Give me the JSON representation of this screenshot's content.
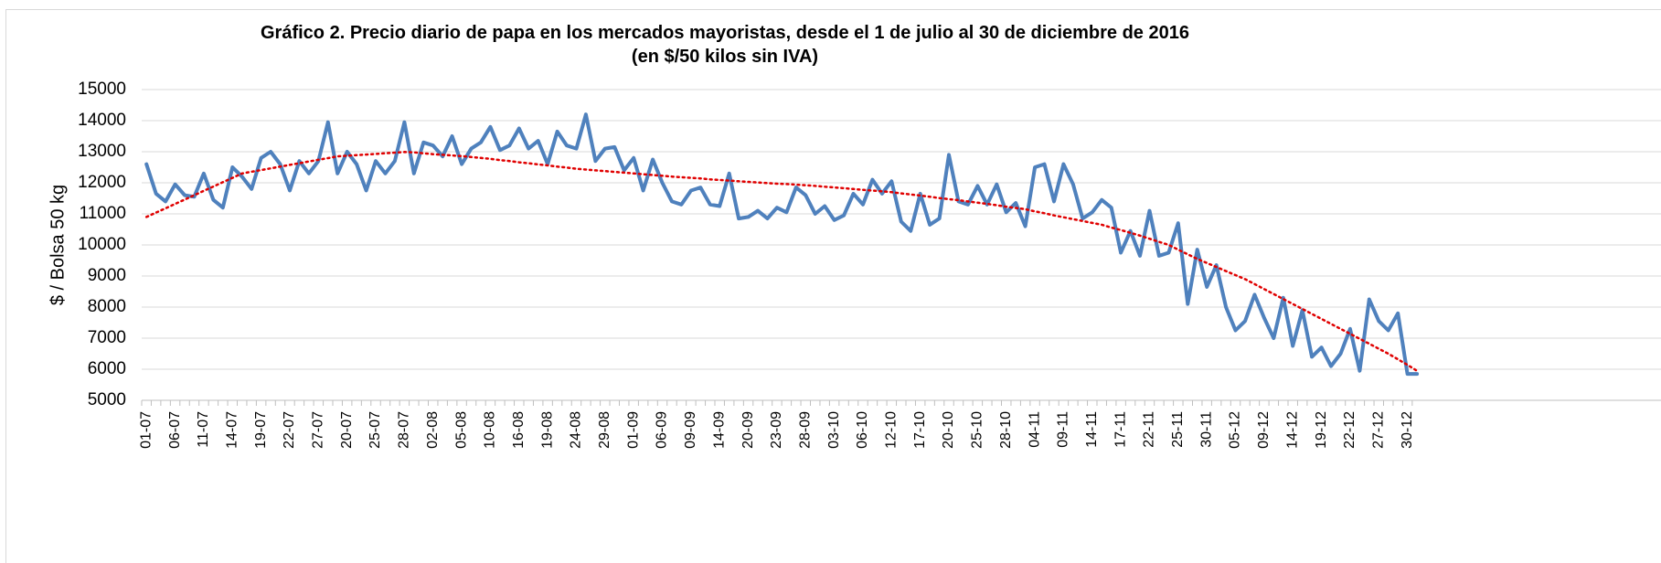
{
  "chart_data": {
    "type": "line",
    "title": "Gráfico 2. Precio diario de papa en los mercados mayoristas, desde el 1 de julio al 30 de diciembre de 2016",
    "subtitle": "(en $/50 kilos sin IVA)",
    "y_label": "$ / Bolsa 50 kg",
    "ylim": [
      5000,
      15000
    ],
    "yticks": [
      5000,
      6000,
      7000,
      8000,
      9000,
      10000,
      11000,
      12000,
      13000,
      14000,
      15000
    ],
    "grid": true,
    "categories": [
      "01-07",
      null,
      null,
      "06-07",
      null,
      null,
      "11-07",
      null,
      null,
      "14-07",
      null,
      null,
      "19-07",
      null,
      null,
      "22-07",
      null,
      null,
      "27-07",
      null,
      null,
      "20-07",
      null,
      null,
      "25-07",
      null,
      null,
      "28-07",
      null,
      null,
      "02-08",
      null,
      null,
      "05-08",
      null,
      null,
      "10-08",
      null,
      null,
      "16-08",
      null,
      null,
      "19-08",
      null,
      null,
      "24-08",
      null,
      null,
      "29-08",
      null,
      null,
      "01-09",
      null,
      null,
      "06-09",
      null,
      null,
      "09-09",
      null,
      null,
      "14-09",
      null,
      null,
      "20-09",
      null,
      null,
      "23-09",
      null,
      null,
      "28-09",
      null,
      null,
      "03-10",
      null,
      null,
      "06-10",
      null,
      null,
      "12-10",
      null,
      null,
      "17-10",
      null,
      null,
      "20-10",
      null,
      null,
      "25-10",
      null,
      null,
      "28-10",
      null,
      null,
      "04-11",
      null,
      null,
      "09-11",
      null,
      null,
      "14-11",
      null,
      null,
      "17-11",
      null,
      null,
      "22-11",
      null,
      null,
      "25-11",
      null,
      null,
      "30-11",
      null,
      null,
      "05-12",
      null,
      null,
      "09-12",
      null,
      null,
      "14-12",
      null,
      null,
      "19-12",
      null,
      null,
      "22-12",
      null,
      null,
      "27-12",
      null,
      null,
      "30-12",
      null
    ],
    "series": [
      {
        "color": "#4f81bd",
        "style": "solid",
        "values": [
          12600,
          11650,
          11400,
          11950,
          11600,
          11550,
          12300,
          11450,
          11200,
          12500,
          12200,
          11800,
          12800,
          13000,
          12600,
          11750,
          12700,
          12300,
          12700,
          13950,
          12300,
          13000,
          12600,
          11750,
          12700,
          12300,
          12700,
          13950,
          12300,
          13300,
          13200,
          12850,
          13500,
          12600,
          13100,
          13300,
          13800,
          13050,
          13200,
          13750,
          13100,
          13350,
          12600,
          13650,
          13200,
          13100,
          14200,
          12700,
          13100,
          13150,
          12400,
          12800,
          11750,
          12750,
          12000,
          11400,
          11300,
          11750,
          11850,
          11300,
          11250,
          12300,
          10850,
          10900,
          11100,
          10850,
          11200,
          11050,
          11850,
          11600,
          11000,
          11250,
          10800,
          10950,
          11650,
          11300,
          12100,
          11650,
          12050,
          10750,
          10450,
          11650,
          10650,
          10850,
          12900,
          11400,
          11300,
          11900,
          11300,
          11950,
          11050,
          11350,
          10600,
          12500,
          12600,
          11400,
          12600,
          11950,
          10850,
          11050,
          11450,
          11200,
          9750,
          10450,
          9650,
          11100,
          9650,
          9750,
          10700,
          8100,
          9850,
          8650,
          9350,
          8000,
          7250,
          7550,
          8400,
          7650,
          7000,
          8300,
          6750,
          7900,
          6400,
          6700,
          6100,
          6500,
          7300,
          5950,
          8250,
          7550,
          7250,
          7800,
          5850,
          5850
        ]
      },
      {
        "color": "#e00000",
        "style": "dotted",
        "values": [
          10900,
          11040,
          11180,
          11320,
          11460,
          11600,
          11740,
          11880,
          12020,
          12160,
          12300,
          12355,
          12410,
          12465,
          12520,
          12575,
          12630,
          12685,
          12740,
          12795,
          12850,
          12870,
          12890,
          12910,
          12930,
          12950,
          12970,
          12990,
          12980,
          12950,
          12920,
          12900,
          12880,
          12860,
          12830,
          12800,
          12770,
          12730,
          12700,
          12660,
          12630,
          12590,
          12560,
          12520,
          12490,
          12450,
          12425,
          12400,
          12375,
          12350,
          12325,
          12300,
          12275,
          12250,
          12225,
          12200,
          12180,
          12160,
          12140,
          12110,
          12090,
          12070,
          12050,
          12030,
          12010,
          11990,
          11970,
          11960,
          11940,
          11920,
          11900,
          11875,
          11850,
          11825,
          11800,
          11775,
          11750,
          11725,
          11700,
          11660,
          11625,
          11590,
          11550,
          11510,
          11475,
          11440,
          11400,
          11360,
          11320,
          11280,
          11230,
          11190,
          11150,
          11080,
          11020,
          10950,
          10890,
          10830,
          10770,
          10710,
          10650,
          10560,
          10480,
          10390,
          10300,
          10200,
          10100,
          10000,
          9850,
          9700,
          9550,
          9420,
          9290,
          9160,
          9030,
          8900,
          8740,
          8580,
          8420,
          8260,
          8100,
          7940,
          7780,
          7620,
          7460,
          7300,
          7140,
          6980,
          6820,
          6660,
          6500,
          6320,
          6140,
          5950
        ]
      }
    ]
  }
}
